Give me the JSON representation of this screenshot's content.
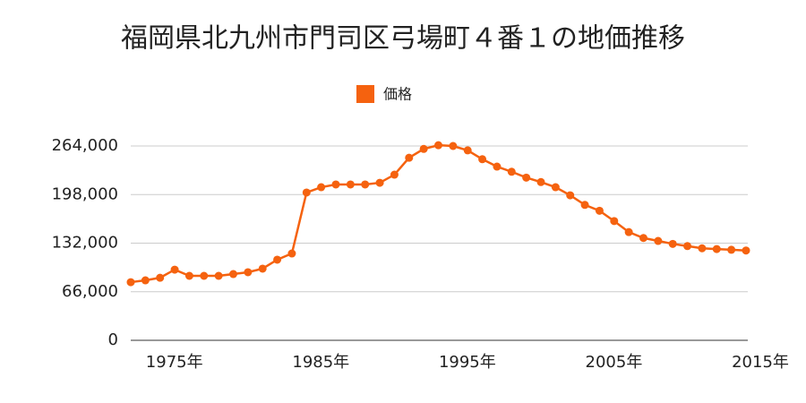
{
  "chart_data": {
    "type": "line",
    "title": "福岡県北九州市門司区弓場町４番１の地価推移",
    "x": [
      1973,
      1974,
      1975,
      1976,
      1977,
      1978,
      1979,
      1980,
      1981,
      1982,
      1983,
      1984,
      1985,
      1986,
      1987,
      1988,
      1989,
      1990,
      1991,
      1992,
      1993,
      1994,
      1995,
      1996,
      1997,
      1998,
      1999,
      2000,
      2001,
      2002,
      2003,
      2004,
      2005,
      2006,
      2007,
      2008,
      2009,
      2010,
      2011,
      2012,
      2013,
      2014,
      2015
    ],
    "series": [
      {
        "name": "価格",
        "color": "#f5620f",
        "values": [
          79000,
          81500,
          85000,
          96000,
          87600,
          87600,
          87600,
          90000,
          92500,
          97400,
          109500,
          118000,
          200800,
          208000,
          211700,
          211700,
          211700,
          214000,
          225000,
          248000,
          260000,
          265000,
          264000,
          258000,
          246000,
          236000,
          229000,
          221000,
          215000,
          208000,
          197000,
          184000,
          176000,
          162000,
          147000,
          139000,
          135000,
          131000,
          128000,
          125000,
          124000,
          123000,
          122000
        ]
      }
    ],
    "xlim": [
      1973,
      2015
    ],
    "xticks": [
      {
        "value": 1975,
        "label": "1975年"
      },
      {
        "value": 1985,
        "label": "1985年"
      },
      {
        "value": 1995,
        "label": "1995年"
      },
      {
        "value": 2005,
        "label": "2005年"
      },
      {
        "value": 2015,
        "label": "2015年"
      }
    ],
    "ylim": [
      0,
      264000
    ],
    "yticks": [
      0,
      {
        "value": 66000,
        "label": "66,000"
      },
      {
        "value": 132000,
        "label": "132,000"
      },
      {
        "value": 198000,
        "label": "198,000"
      },
      {
        "value": 264000,
        "label": "264,000"
      }
    ],
    "grid": true
  }
}
